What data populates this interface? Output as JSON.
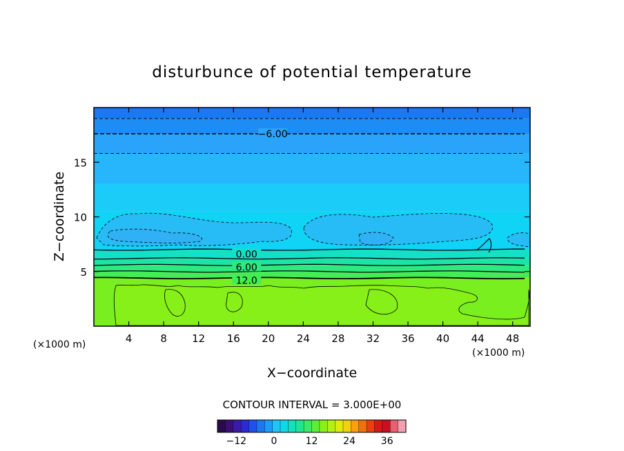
{
  "chart_data": {
    "type": "heatmap",
    "title": "disturbunce of potential temperature",
    "xlabel": "X−coordinate",
    "ylabel": "Z−coordinate",
    "x_unit_left": "(×1000 m)",
    "x_unit_right": "(×1000 m)",
    "xlim": [
      0,
      50
    ],
    "ylim": [
      0,
      20
    ],
    "x_ticks": [
      4,
      8,
      12,
      16,
      20,
      24,
      28,
      32,
      36,
      40,
      44,
      48
    ],
    "x_tick_labels": [
      "4",
      "8",
      "12",
      "16",
      "20",
      "24",
      "28",
      "32",
      "36",
      "40",
      "44",
      "48"
    ],
    "y_ticks": [
      5,
      10,
      15
    ],
    "y_tick_labels": [
      "5",
      "10",
      "15"
    ],
    "contour_interval_text": "CONTOUR INTERVAL = 3.000E+00",
    "contour_labels": [
      {
        "text": "−6.00",
        "x": 19,
        "z": 17.6
      },
      {
        "text": "0.00",
        "x": 16,
        "z": 6.6
      },
      {
        "text": "6.00",
        "x": 16,
        "z": 5.4
      },
      {
        "text": "12.0",
        "x": 16,
        "z": 4.2
      }
    ],
    "levels": [
      {
        "z_bottom": 19.0,
        "z_top": 20.0,
        "value": -9,
        "color": "#1a78f0"
      },
      {
        "z_bottom": 17.6,
        "z_top": 19.0,
        "value": -7.5,
        "color": "#1e8cf5"
      },
      {
        "z_bottom": 15.8,
        "z_top": 17.6,
        "value": -6,
        "color": "#2aa4fa"
      },
      {
        "z_bottom": 13.0,
        "z_top": 15.8,
        "value": -4.5,
        "color": "#27b6fb"
      },
      {
        "z_bottom": 10.5,
        "z_top": 13.0,
        "value": -3,
        "color": "#1cccf8"
      },
      {
        "z_bottom": 7.0,
        "z_top": 10.5,
        "value": -1.5,
        "color": "#10d4f6"
      },
      {
        "z_bottom": 6.2,
        "z_top": 7.0,
        "value": 1.5,
        "color": "#14e0c8"
      },
      {
        "z_bottom": 5.6,
        "z_top": 6.2,
        "value": 4.5,
        "color": "#1ce4a6"
      },
      {
        "z_bottom": 5.0,
        "z_top": 5.6,
        "value": 7.5,
        "color": "#2ee880"
      },
      {
        "z_bottom": 4.4,
        "z_top": 5.0,
        "value": 10.5,
        "color": "#46ec58"
      },
      {
        "z_bottom": 0.0,
        "z_top": 4.4,
        "value": 13.5,
        "color": "#7aef20"
      }
    ],
    "contour_lines": [
      {
        "z": 19.0,
        "style": "dashed",
        "value": -9
      },
      {
        "z": 17.6,
        "style": "dashed",
        "value": -6
      },
      {
        "z": 15.8,
        "style": "dashed",
        "value": -3
      },
      {
        "z": 7.0,
        "style": "solid",
        "value": 0
      },
      {
        "z": 6.2,
        "style": "solid",
        "value": 3
      },
      {
        "z": 5.6,
        "style": "solid",
        "value": 6
      },
      {
        "z": 5.0,
        "style": "solid",
        "value": 9
      },
      {
        "z": 4.4,
        "style": "solid",
        "value": 12
      }
    ],
    "colorbar": {
      "min": -18,
      "max": 42,
      "ticks": [
        -12,
        0,
        12,
        24,
        36
      ],
      "tick_labels": [
        "−12",
        "0",
        "12",
        "24",
        "36"
      ],
      "colors": [
        "#2a0a4a",
        "#3a0f78",
        "#3a1aa8",
        "#2a2ad8",
        "#2050f0",
        "#1a78f0",
        "#1e9cf8",
        "#20c4f8",
        "#10d8e8",
        "#14e0c0",
        "#20e494",
        "#3aea66",
        "#5aee38",
        "#86f018",
        "#b4f010",
        "#dcec10",
        "#f4d010",
        "#f8a010",
        "#f07010",
        "#e84010",
        "#d81818",
        "#c81020",
        "#e86070",
        "#f0a0b0"
      ]
    }
  }
}
